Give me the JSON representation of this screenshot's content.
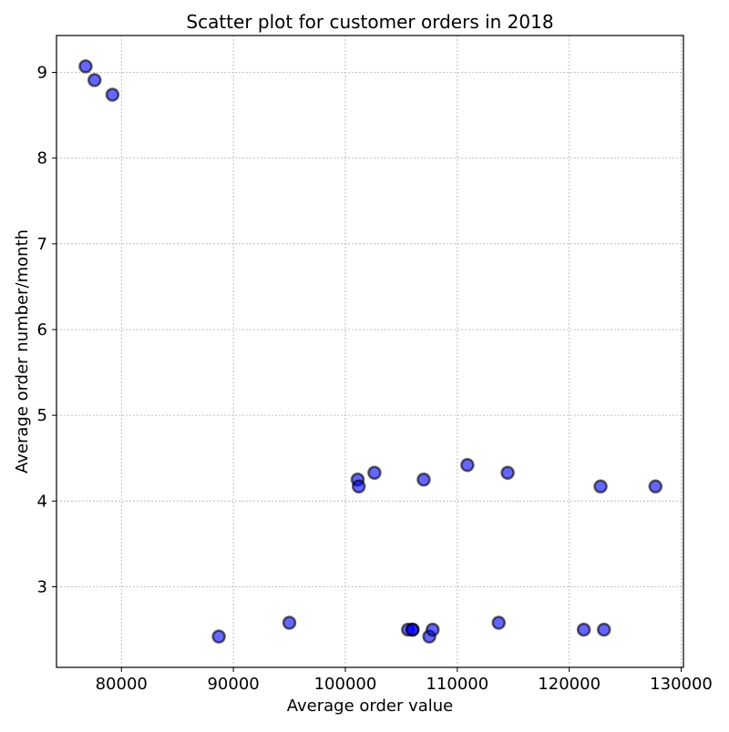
{
  "chart_data": {
    "type": "scatter",
    "title": "Scatter plot for customer orders in 2018",
    "xlabel": "Average order value",
    "ylabel": "Average order number/month",
    "xlim": [
      74200,
      130200
    ],
    "ylim": [
      2.06,
      9.43
    ],
    "xticks": [
      80000,
      90000,
      100000,
      110000,
      120000,
      130000
    ],
    "yticks": [
      3,
      4,
      5,
      6,
      7,
      8,
      9
    ],
    "grid": true,
    "marker_color": "#0000ff",
    "marker_edge_color": "#000000",
    "points": [
      {
        "x": 76800,
        "y": 9.07
      },
      {
        "x": 77600,
        "y": 8.91
      },
      {
        "x": 79200,
        "y": 8.74
      },
      {
        "x": 88700,
        "y": 2.42
      },
      {
        "x": 95000,
        "y": 2.58
      },
      {
        "x": 101100,
        "y": 4.25
      },
      {
        "x": 101200,
        "y": 4.17
      },
      {
        "x": 102600,
        "y": 4.33
      },
      {
        "x": 105600,
        "y": 2.5
      },
      {
        "x": 106000,
        "y": 2.5
      },
      {
        "x": 106000,
        "y": 2.5
      },
      {
        "x": 107000,
        "y": 4.25
      },
      {
        "x": 107500,
        "y": 2.42
      },
      {
        "x": 107800,
        "y": 2.5
      },
      {
        "x": 110900,
        "y": 4.42
      },
      {
        "x": 113700,
        "y": 2.58
      },
      {
        "x": 114500,
        "y": 4.33
      },
      {
        "x": 121300,
        "y": 2.5
      },
      {
        "x": 122800,
        "y": 4.17
      },
      {
        "x": 123100,
        "y": 2.5
      },
      {
        "x": 127700,
        "y": 4.17
      }
    ]
  }
}
